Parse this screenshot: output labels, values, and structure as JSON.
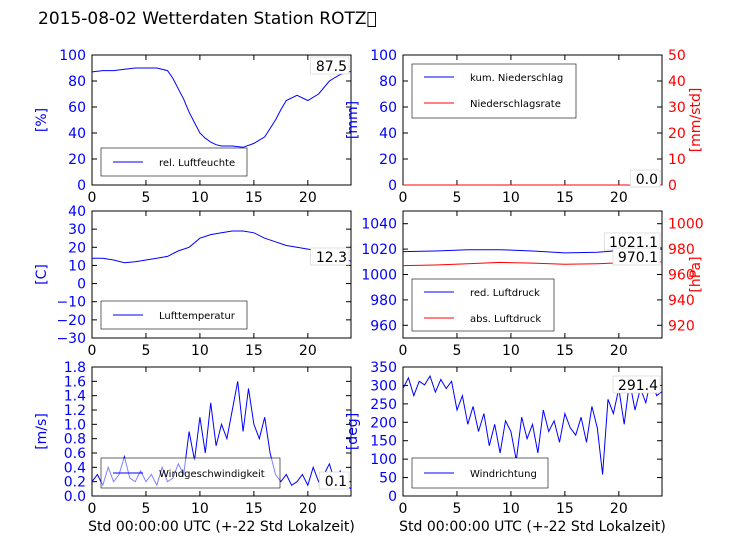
{
  "title": "2015-08-02 Wetterdaten Station ROTZ\u0000",
  "colors": {
    "left": "#0000ff",
    "right": "#ff0000",
    "axis": "#000000"
  },
  "xlabel": "Std 00:00:00 UTC (+-22 Std Lokalzeit)",
  "chart_data": [
    {
      "type": "line",
      "panel": "humidity",
      "ylabel": "[%]",
      "ylim": [
        0,
        100
      ],
      "yticks": [
        "0",
        "20",
        "40",
        "60",
        "80",
        "100"
      ],
      "xlim": [
        0,
        24
      ],
      "xticks": [
        "0",
        "5",
        "10",
        "15",
        "20"
      ],
      "legend": [
        "rel. Luftfeuchte"
      ],
      "legend_position": "bottom-left",
      "last_value_label": "87.5",
      "series": [
        {
          "name": "rel. Luftfeuchte",
          "color": "#0000ff",
          "x": [
            0,
            1,
            2,
            3,
            4,
            5,
            6,
            7,
            7.5,
            8,
            8.5,
            9,
            9.5,
            10,
            10.5,
            11,
            11.5,
            12,
            13,
            14,
            15,
            16,
            17,
            17.5,
            18,
            19,
            20,
            21,
            22,
            23,
            24
          ],
          "y": [
            87,
            88,
            88,
            89,
            90,
            90,
            90,
            88,
            82,
            74,
            66,
            56,
            48,
            40,
            36,
            33,
            31,
            30,
            30,
            29,
            32,
            37,
            50,
            58,
            65,
            69,
            65,
            70,
            80,
            85,
            87.5
          ]
        }
      ]
    },
    {
      "type": "line",
      "panel": "precipitation",
      "ylabel": "[mm]",
      "ylim": [
        0,
        100
      ],
      "yticks": [
        "0",
        "20",
        "40",
        "60",
        "80",
        "100"
      ],
      "ylabel_right": "[mm/std]",
      "ylim_right": [
        0,
        50
      ],
      "yticks_right": [
        "0",
        "10",
        "20",
        "30",
        "40",
        "50"
      ],
      "xlim": [
        0,
        24
      ],
      "xticks": [
        "0",
        "5",
        "10",
        "15",
        "20"
      ],
      "legend": [
        "kum. Niederschlag",
        "Niederschlagsrate"
      ],
      "legend_position": "top-left",
      "last_value_label": "0.0",
      "series": [
        {
          "name": "kum. Niederschlag",
          "color": "#0000ff",
          "axis": "left",
          "x": [
            0,
            24
          ],
          "y": [
            0,
            0
          ]
        },
        {
          "name": "Niederschlagsrate",
          "color": "#ff0000",
          "axis": "right",
          "x": [
            0,
            24
          ],
          "y": [
            0,
            0
          ]
        }
      ]
    },
    {
      "type": "line",
      "panel": "temperature",
      "ylabel": "[C]",
      "ylim": [
        -30,
        40
      ],
      "yticks": [
        "−30",
        "−20",
        "−10",
        "0",
        "10",
        "20",
        "30",
        "40"
      ],
      "xlim": [
        0,
        24
      ],
      "xticks": [
        "0",
        "5",
        "10",
        "15",
        "20"
      ],
      "legend": [
        "Lufttemperatur"
      ],
      "legend_position": "bottom-left",
      "last_value_label": "12.3",
      "series": [
        {
          "name": "Lufttemperatur",
          "color": "#0000ff",
          "x": [
            0,
            1,
            2,
            3,
            4,
            5,
            6,
            7,
            8,
            9,
            10,
            11,
            12,
            13,
            14,
            15,
            16,
            17,
            18,
            19,
            20,
            21,
            22,
            23,
            24
          ],
          "y": [
            14,
            14,
            13,
            11.5,
            12,
            13,
            14,
            15,
            18,
            20,
            25,
            27,
            28,
            29,
            29,
            28,
            25,
            23,
            21,
            20,
            19,
            18,
            16,
            15,
            12.3
          ]
        }
      ]
    },
    {
      "type": "line",
      "panel": "pressure",
      "ylim": [
        950,
        1050
      ],
      "yticks": [
        "960",
        "980",
        "1000",
        "1020",
        "1040"
      ],
      "ylabel_right": "[hPa]",
      "ylim_right": [
        910,
        1010
      ],
      "yticks_right": [
        "920",
        "940",
        "960",
        "980",
        "1000"
      ],
      "xlim": [
        0,
        24
      ],
      "xticks": [
        "0",
        "5",
        "10",
        "15",
        "20"
      ],
      "legend": [
        "red. Luftdruck",
        "abs. Luftdruck"
      ],
      "legend_position": "bottom-left",
      "value_labels": [
        "1021.1",
        "970.1"
      ],
      "series": [
        {
          "name": "red. Luftdruck",
          "color": "#0000ff",
          "axis": "left",
          "x": [
            0,
            3,
            6,
            9,
            12,
            15,
            18,
            21,
            24
          ],
          "y": [
            1018,
            1018.5,
            1019.5,
            1019.5,
            1018.5,
            1017,
            1017.5,
            1019.5,
            1021.1
          ]
        },
        {
          "name": "abs. Luftdruck",
          "color": "#ff0000",
          "axis": "right",
          "x": [
            0,
            3,
            6,
            9,
            12,
            15,
            18,
            21,
            24
          ],
          "y": [
            967,
            967.5,
            968.5,
            969.5,
            969,
            968,
            968.5,
            969.5,
            970.1
          ]
        }
      ]
    },
    {
      "type": "line",
      "panel": "wind_speed",
      "ylabel": "[m/s]",
      "ylim": [
        0,
        1.8
      ],
      "yticks": [
        "0.0",
        "0.2",
        "0.4",
        "0.6",
        "0.8",
        "1.0",
        "1.2",
        "1.4",
        "1.6",
        "1.8"
      ],
      "xlim": [
        0,
        24
      ],
      "xticks": [
        "0",
        "5",
        "10",
        "15",
        "20"
      ],
      "legend": [
        "Windgeschwindigkeit"
      ],
      "legend_position": "bottom-left",
      "last_value_label": "0.1",
      "series": [
        {
          "name": "Windgeschwindigkeit",
          "color": "#0000ff",
          "x": [
            0,
            0.5,
            1,
            1.5,
            2,
            2.5,
            3,
            3.5,
            4,
            4.5,
            5,
            5.5,
            6,
            6.5,
            7,
            7.5,
            8,
            8.5,
            9,
            9.5,
            10,
            10.5,
            11,
            11.5,
            12,
            12.5,
            13,
            13.5,
            14,
            14.5,
            15,
            15.5,
            16,
            16.5,
            17,
            17.5,
            18,
            18.5,
            19,
            19.5,
            20,
            20.5,
            21,
            21.5,
            22,
            22.5,
            23,
            23.5,
            24
          ],
          "y": [
            0.2,
            0.3,
            0.15,
            0.4,
            0.2,
            0.3,
            0.55,
            0.25,
            0.2,
            0.35,
            0.2,
            0.3,
            0.15,
            0.4,
            0.2,
            0.25,
            0.45,
            0.3,
            0.9,
            0.5,
            1.1,
            0.6,
            1.3,
            0.7,
            1.0,
            0.8,
            1.2,
            1.6,
            0.9,
            1.5,
            1.0,
            0.8,
            1.1,
            0.6,
            0.3,
            0.2,
            0.3,
            0.15,
            0.2,
            0.3,
            0.15,
            0.4,
            0.2,
            0.3,
            0.45,
            0.2,
            0.35,
            0.15,
            0.1
          ]
        }
      ]
    },
    {
      "type": "line",
      "panel": "wind_direction",
      "ylabel": "[deg]",
      "ylim": [
        0,
        360
      ],
      "yticks": [
        "0",
        "50",
        "100",
        "150",
        "200",
        "250",
        "300",
        "350"
      ],
      "xlim": [
        0,
        24
      ],
      "xticks": [
        "0",
        "5",
        "10",
        "15",
        "20"
      ],
      "legend": [
        "Windrichtung"
      ],
      "legend_position": "bottom-left",
      "last_value_label": "291.4",
      "series": [
        {
          "name": "Windrichtung",
          "color": "#0000ff",
          "x": [
            0,
            0.5,
            1,
            1.5,
            2,
            2.5,
            3,
            3.5,
            4,
            4.5,
            5,
            5.5,
            6,
            6.5,
            7,
            7.5,
            8,
            8.5,
            9,
            9.5,
            10,
            10.5,
            11,
            11.5,
            12,
            12.5,
            13,
            13.5,
            14,
            14.5,
            15,
            15.5,
            16,
            16.5,
            17,
            17.5,
            18,
            18.5,
            19,
            19.5,
            20,
            20.5,
            21,
            21.5,
            22,
            22.5,
            23,
            23.5,
            24
          ],
          "y": [
            300,
            330,
            280,
            320,
            310,
            335,
            290,
            325,
            300,
            320,
            240,
            280,
            200,
            250,
            180,
            230,
            140,
            200,
            120,
            210,
            180,
            100,
            220,
            160,
            200,
            120,
            240,
            180,
            210,
            150,
            230,
            190,
            170,
            220,
            150,
            250,
            190,
            60,
            270,
            230,
            300,
            200,
            320,
            240,
            300,
            260,
            330,
            280,
            291.4
          ]
        }
      ]
    }
  ]
}
